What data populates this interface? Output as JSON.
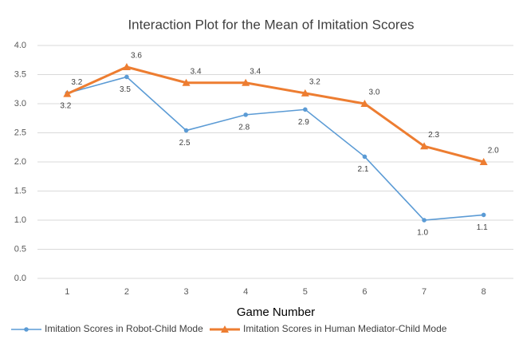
{
  "chart_data": {
    "type": "line",
    "title": "Interaction Plot for the Mean of Imitation Scores",
    "x_label": "Game Number",
    "categories": [
      1,
      2,
      3,
      4,
      5,
      6,
      7,
      8
    ],
    "series": [
      {
        "name": "Imitation Scores in Robot-Child Mode",
        "color": "#5b9bd5",
        "marker": "circle",
        "values": [
          3.18,
          3.46,
          2.54,
          2.81,
          2.9,
          2.09,
          1.0,
          1.09
        ],
        "value_labels": [
          "3.2",
          "3.5",
          "2.5",
          "2.8",
          "2.9",
          "2.1",
          "1.0",
          "1.1"
        ]
      },
      {
        "name": "Imitation Scores in Human Mediator-Child Mode",
        "color": "#ed7d31",
        "marker": "triangle",
        "values": [
          3.17,
          3.63,
          3.36,
          3.36,
          3.18,
          3.0,
          2.27,
          2.0
        ],
        "value_labels": [
          "3.2",
          "3.6",
          "3.4",
          "3.4",
          "3.2",
          "3.0",
          "2.3",
          "2.0"
        ]
      }
    ],
    "ylim": [
      0,
      4
    ],
    "yticks": [
      {
        "value": 0,
        "label": "0.0"
      },
      0.5,
      {
        "value": 1,
        "label": "1.0"
      },
      1.5,
      {
        "value": 2,
        "label": "2.0"
      },
      2.5,
      {
        "value": 3,
        "label": "3.0"
      },
      3.5,
      {
        "value": 4,
        "label": "4.0"
      }
    ],
    "grid": true,
    "legend": "bottom"
  }
}
